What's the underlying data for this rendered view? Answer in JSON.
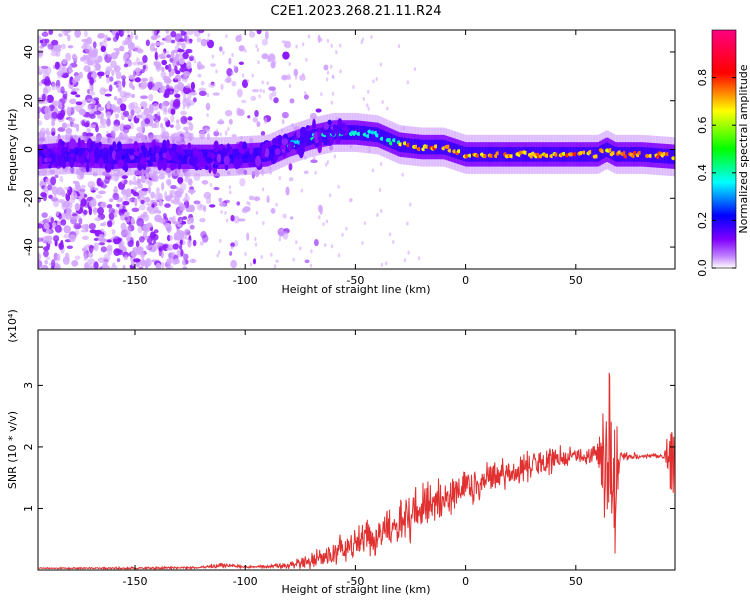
{
  "title": "C2E1.2023.268.21.11.R24",
  "chart_data": [
    {
      "type": "heatmap",
      "xlabel": "Height of straight line (km)",
      "ylabel": "Frequency (Hz)",
      "xlim": [
        -194,
        95
      ],
      "ylim": [
        -49,
        49
      ],
      "xticks": [
        -150,
        -100,
        -50,
        0,
        50
      ],
      "xtick_labels": [
        "-150",
        "-100",
        "-50",
        "0",
        "50"
      ],
      "yticks": [
        -40,
        -20,
        0,
        20,
        40
      ],
      "ytick_labels": [
        "-40",
        "-20",
        "0",
        "20",
        "40"
      ],
      "grid": false,
      "ridge": {
        "x": [
          -194,
          -180,
          -160,
          -140,
          -130,
          -110,
          -90,
          -80,
          -70,
          -60,
          -50,
          -40,
          -35,
          -30,
          -20,
          -10,
          0,
          10,
          30,
          50,
          60,
          64,
          68,
          80,
          95
        ],
        "y": [
          -3,
          -2,
          -3,
          -2,
          -3,
          -3,
          -2,
          2,
          5,
          7,
          7,
          6,
          4,
          2,
          1,
          1,
          -2,
          -2,
          -2,
          -2,
          -2,
          0,
          -2,
          -2,
          -3
        ]
      }
    },
    {
      "type": "colorbar",
      "label": "Normalized spectral amplitude",
      "range": [
        0,
        1
      ],
      "ticks": [
        0.0,
        0.2,
        0.4,
        0.6,
        0.8
      ],
      "tick_labels": [
        "0.0",
        "0.2",
        "0.4",
        "0.6",
        "0.8"
      ],
      "colors": [
        "#ffffff",
        "#8000ff",
        "#0000ff",
        "#00ffff",
        "#00ff00",
        "#ffff00",
        "#ff0000",
        "#ff00a0"
      ]
    },
    {
      "type": "line",
      "xlabel": "Height of straight line (km)",
      "ylabel": "SNR (10 * v/v)",
      "multiplier": "(x10⁴)",
      "xlim": [
        -194,
        95
      ],
      "ylim": [
        0,
        3.9
      ],
      "xticks": [
        -150,
        -100,
        -50,
        0,
        50
      ],
      "xtick_labels": [
        "-150",
        "-100",
        "-50",
        "0",
        "50"
      ],
      "yticks": [
        1,
        2,
        3
      ],
      "ytick_labels": [
        "1",
        "2",
        "3"
      ],
      "grid": false,
      "color": "#e03030",
      "envelope": {
        "x": [
          -194,
          -150,
          -120,
          -110,
          -100,
          -90,
          -80,
          -70,
          -60,
          -55,
          -50,
          -45,
          -40,
          -30,
          -25,
          -20,
          -15,
          -10,
          -5,
          0,
          5,
          10,
          20,
          30,
          40,
          50,
          55,
          60,
          64,
          66,
          68,
          70,
          80,
          90,
          92,
          95
        ],
        "mean": [
          0.03,
          0.03,
          0.04,
          0.08,
          0.05,
          0.05,
          0.08,
          0.15,
          0.25,
          0.35,
          0.45,
          0.5,
          0.55,
          0.75,
          0.9,
          1.0,
          1.05,
          1.1,
          1.2,
          1.3,
          1.35,
          1.45,
          1.6,
          1.7,
          1.8,
          1.85,
          1.85,
          1.9,
          1.8,
          1.4,
          1.5,
          1.85,
          1.85,
          1.85,
          1.9,
          1.6
        ],
        "spread": [
          0.01,
          0.02,
          0.02,
          0.06,
          0.02,
          0.04,
          0.07,
          0.15,
          0.25,
          0.35,
          0.3,
          0.35,
          0.4,
          0.45,
          0.5,
          0.5,
          0.45,
          0.45,
          0.4,
          0.4,
          0.35,
          0.35,
          0.3,
          0.3,
          0.25,
          0.15,
          0.15,
          0.3,
          1.6,
          1.9,
          1.3,
          0.1,
          0.05,
          0.05,
          0.4,
          1.2
        ]
      }
    }
  ]
}
